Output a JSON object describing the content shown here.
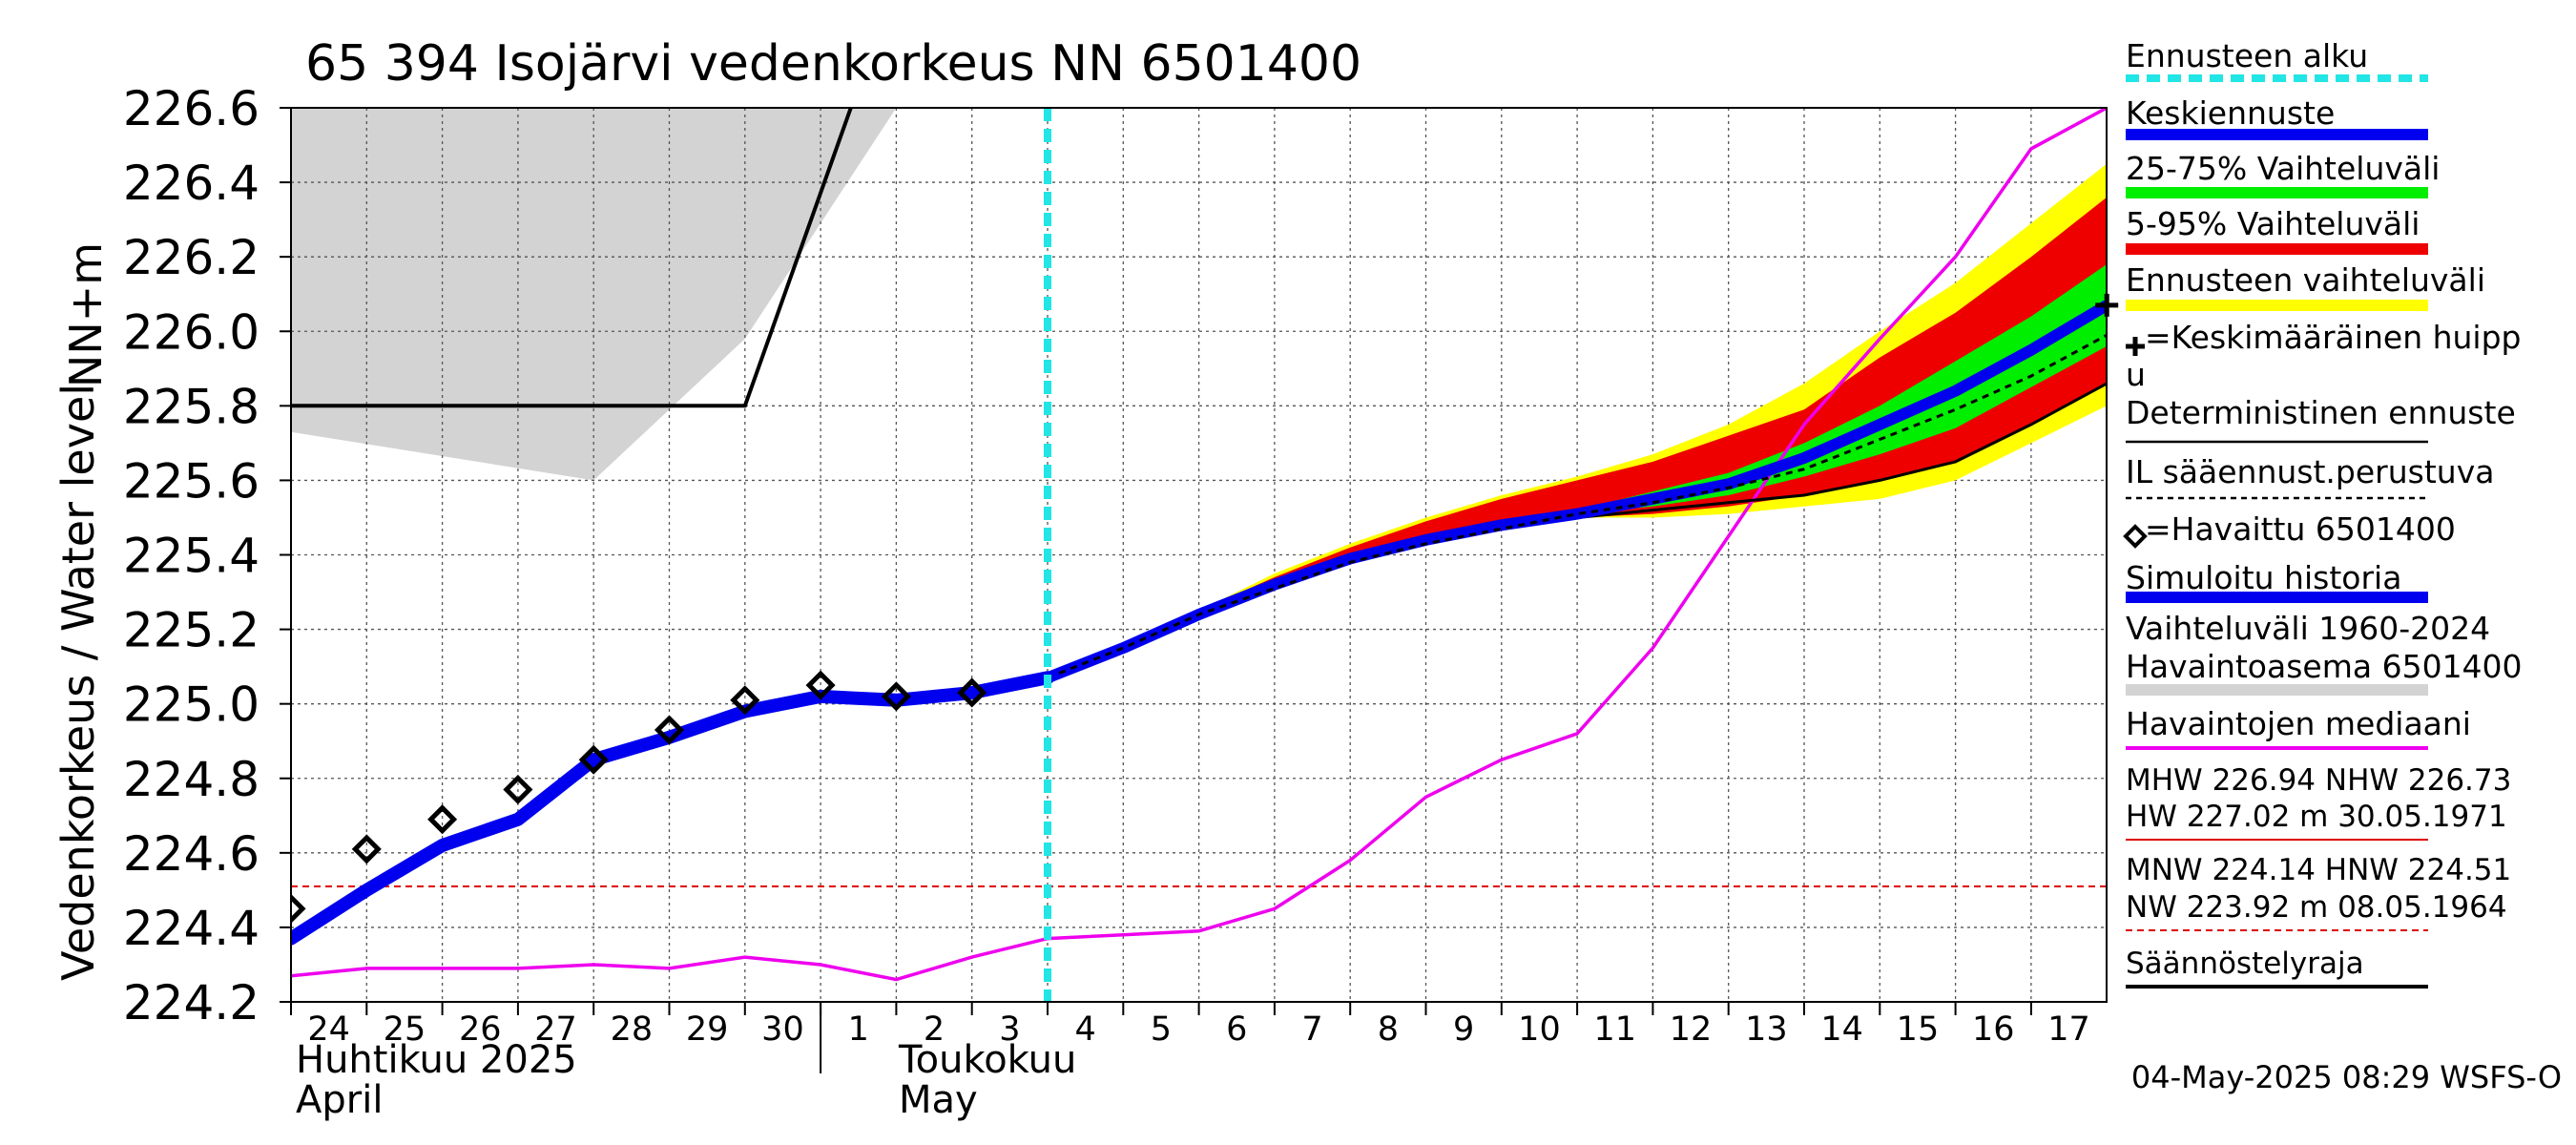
{
  "chart_data": {
    "type": "line",
    "title": "65 394 Isojärvi vedenkorkeus NN 6501400",
    "ylabel_top": "NN+m",
    "ylabel": "Vedenkorkeus / Water level",
    "ylim": [
      224.2,
      226.6
    ],
    "yticks": [
      "226.6",
      "226.4",
      "226.2",
      "226.0",
      "225.8",
      "225.6",
      "225.4",
      "225.2",
      "225.0",
      "224.8",
      "224.6",
      "224.4",
      "224.2"
    ],
    "x_labels": [
      "24",
      "25",
      "26",
      "27",
      "28",
      "29",
      "30",
      "1",
      "2",
      "3",
      "4",
      "5",
      "6",
      "7",
      "8",
      "9",
      "10",
      "11",
      "12",
      "13",
      "14",
      "15",
      "16",
      "17"
    ],
    "months": [
      {
        "fi": "Huhtikuu  2025",
        "en": "April"
      },
      {
        "fi": "Toukokuu",
        "en": "May"
      }
    ],
    "forecast_start_day": 10,
    "history_band": {
      "name": "Vaihteluväli 1960-2024",
      "days": [
        0,
        4,
        6,
        8,
        24
      ],
      "upper": [
        226.6,
        226.6,
        226.6,
        226.6,
        226.6
      ],
      "lower": [
        225.73,
        225.6,
        225.98,
        226.6,
        226.6
      ]
    },
    "simulated_history": {
      "name": "Simuloitu historia",
      "days": [
        0,
        1,
        2,
        3,
        4,
        5,
        6,
        7,
        8,
        9,
        10
      ],
      "values": [
        224.37,
        224.5,
        224.62,
        224.69,
        224.85,
        224.91,
        224.98,
        225.02,
        225.01,
        225.03,
        225.07
      ]
    },
    "observed": {
      "name": "=Havaittu 6501400",
      "days": [
        0,
        1,
        2,
        3,
        4,
        5,
        6,
        7,
        8,
        9
      ],
      "values": [
        224.45,
        224.61,
        224.69,
        224.77,
        224.85,
        224.93,
        225.01,
        225.05,
        225.02,
        225.03
      ]
    },
    "median": {
      "name": "Havaintojen mediaani",
      "days": [
        0,
        1,
        2,
        3,
        4,
        5,
        6,
        7,
        8,
        9,
        10,
        11,
        12,
        13,
        14,
        15,
        16,
        17,
        18,
        19,
        20,
        21,
        22,
        23,
        24
      ],
      "values": [
        224.27,
        224.29,
        224.29,
        224.29,
        224.3,
        224.29,
        224.32,
        224.3,
        224.26,
        224.32,
        224.37,
        224.38,
        224.39,
        224.45,
        224.58,
        224.75,
        224.85,
        224.92,
        225.15,
        225.45,
        225.75,
        225.98,
        226.2,
        226.49,
        226.6
      ]
    },
    "forecast": {
      "days": [
        10,
        11,
        12,
        13,
        14,
        15,
        16,
        17,
        18,
        19,
        20,
        21,
        22,
        23,
        24
      ],
      "ensemble_upper": [
        225.07,
        225.16,
        225.25,
        225.35,
        225.43,
        225.5,
        225.56,
        225.61,
        225.67,
        225.75,
        225.86,
        226.0,
        226.13,
        226.29,
        226.45
      ],
      "p95": [
        225.07,
        225.16,
        225.25,
        225.34,
        225.42,
        225.49,
        225.55,
        225.6,
        225.65,
        225.72,
        225.79,
        225.93,
        226.05,
        226.2,
        226.36
      ],
      "p75": [
        225.07,
        225.15,
        225.24,
        225.32,
        225.39,
        225.44,
        225.48,
        225.52,
        225.57,
        225.62,
        225.7,
        225.8,
        225.92,
        226.04,
        226.18
      ],
      "p25": [
        225.07,
        225.15,
        225.24,
        225.31,
        225.38,
        225.43,
        225.47,
        225.51,
        225.53,
        225.56,
        225.61,
        225.67,
        225.74,
        225.85,
        225.96
      ],
      "p5": [
        225.07,
        225.15,
        225.24,
        225.31,
        225.38,
        225.43,
        225.47,
        225.5,
        225.51,
        225.53,
        225.56,
        225.6,
        225.65,
        225.75,
        225.86
      ],
      "ensemble_lower": [
        225.07,
        225.15,
        225.24,
        225.31,
        225.38,
        225.43,
        225.47,
        225.5,
        225.5,
        225.51,
        225.53,
        225.55,
        225.6,
        225.7,
        225.8
      ],
      "mean": [
        225.07,
        225.15,
        225.24,
        225.32,
        225.39,
        225.44,
        225.48,
        225.51,
        225.55,
        225.59,
        225.66,
        225.75,
        225.84,
        225.95,
        226.07
      ],
      "deterministic": [
        225.07,
        225.15,
        225.24,
        225.31,
        225.38,
        225.43,
        225.47,
        225.5,
        225.52,
        225.54,
        225.56,
        225.6,
        225.65,
        225.75,
        225.86
      ],
      "il_weather": [
        225.07,
        225.15,
        225.24,
        225.31,
        225.38,
        225.43,
        225.47,
        225.51,
        225.54,
        225.58,
        225.63,
        225.71,
        225.79,
        225.88,
        225.99
      ],
      "mean_peak": {
        "day": 24,
        "value": 226.07
      }
    },
    "regulation_limit": {
      "name": "Säännöstelyraja",
      "days": [
        0,
        6,
        7.4
      ],
      "values": [
        225.8,
        225.8,
        226.6
      ]
    },
    "reference_line": {
      "value": 224.51,
      "color": "#dd0000"
    },
    "legend": [
      {
        "label": "Ennusteen alku",
        "style": "dash",
        "color": "#22e5e5"
      },
      {
        "label": "Keskiennuste",
        "style": "thick",
        "color": "#0000ee"
      },
      {
        "label": "25-75% Vaihteluväli",
        "style": "thick",
        "color": "#00ee00"
      },
      {
        "label": "5-95% Vaihteluväli",
        "style": "thick",
        "color": "#ee0000"
      },
      {
        "label": "Ennusteen vaihteluväli",
        "style": "thick",
        "color": "#ffff00"
      },
      {
        "label": "=Keskimääräinen huipp",
        "label2": "u",
        "style": "cross",
        "color": "#000000"
      },
      {
        "label": "Deterministinen ennuste",
        "style": "thin",
        "color": "#000000"
      },
      {
        "label": "IL sääennust.perustuva",
        "style": "dot",
        "color": "#000000"
      },
      {
        "label": "=Havaittu 6501400",
        "style": "diamond",
        "color": "#000000"
      },
      {
        "label": "Simuloitu historia",
        "style": "thick",
        "color": "#0000ee"
      },
      {
        "label": "Vaihteluväli 1960-2024",
        "label2": " Havaintoasema 6501400",
        "style": "thick",
        "color": "#d3d3d3"
      },
      {
        "label": "Havaintojen mediaani",
        "style": "mid",
        "color": "#ee00ee"
      },
      {
        "label": "MHW 226.94 NHW 226.73",
        "label2": "HW 227.02 m 30.05.1971",
        "style": "thinred",
        "color": "#dd0000"
      },
      {
        "label": "MNW 224.14 HNW 224.51",
        "label2": "NW 223.92 m 08.05.1964",
        "style": "dashred",
        "color": "#dd0000"
      },
      {
        "label": "Säännöstelyraja",
        "style": "mid",
        "color": "#000000"
      }
    ],
    "timestamp": "04-May-2025 08:29 WSFS-O",
    "colors": {
      "band_grey": "#d3d3d3",
      "yellow": "#ffff00",
      "red": "#ee0000",
      "green": "#00ee00",
      "blue": "#0000ee",
      "magenta": "#ee00ee",
      "cyan": "#22e5e5"
    }
  }
}
